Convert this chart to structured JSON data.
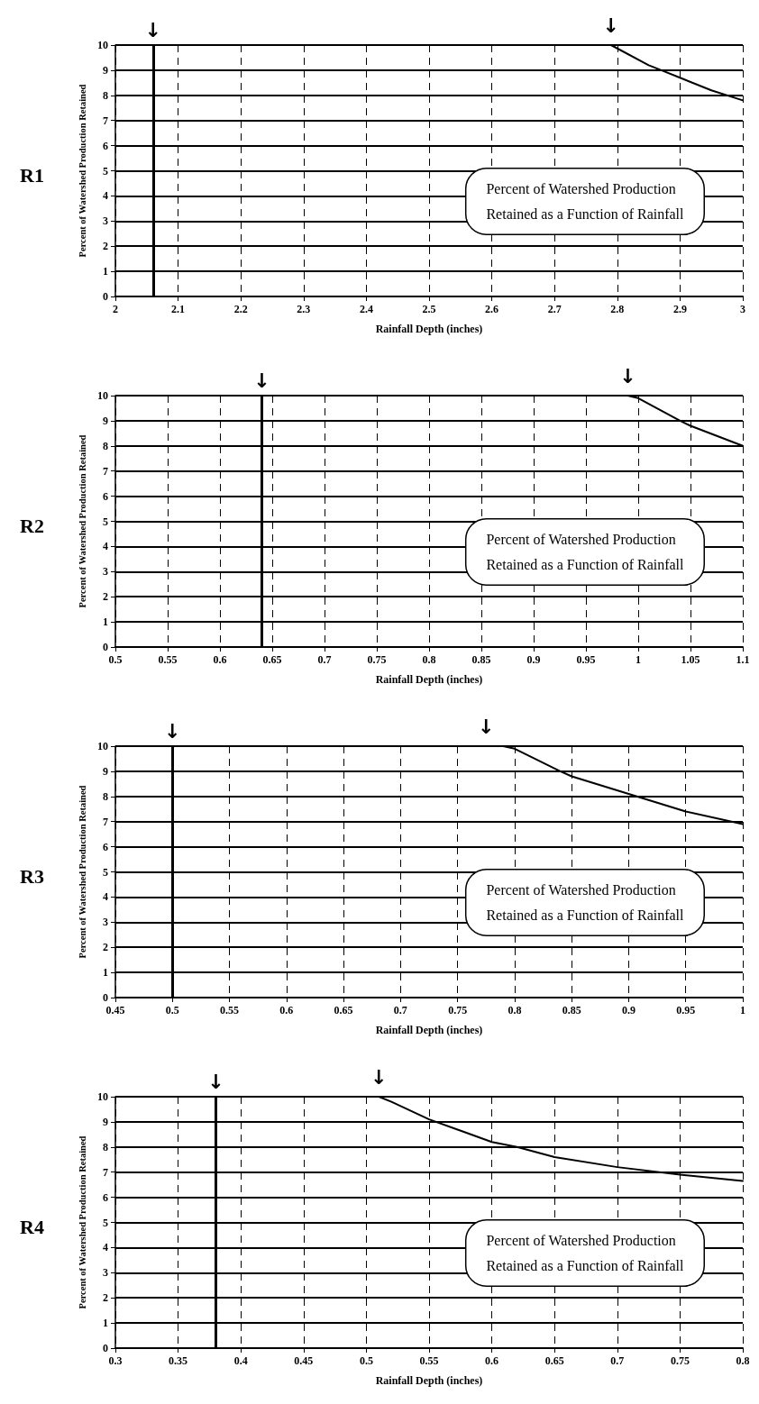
{
  "chart_data": [
    {
      "type": "line",
      "title": "R1",
      "xlabel": "Rainfall Depth (inches)",
      "ylabel": "Percent of Watershed Production Retained",
      "xlim": [
        2,
        3
      ],
      "xticks": [
        2,
        2.1,
        2.2,
        2.3,
        2.4,
        2.5,
        2.6,
        2.7,
        2.8,
        2.9,
        3
      ],
      "ylim": [
        0,
        10
      ],
      "yticks": [
        0,
        1,
        2,
        3,
        4,
        5,
        6,
        7,
        8,
        9,
        10
      ],
      "grid": true,
      "marker": "none",
      "line_style": "solid",
      "series": [
        {
          "color": "#000000",
          "x": [
            2.79,
            2.85,
            2.87,
            2.9,
            2.95,
            3
          ],
          "values": [
            10,
            9.2,
            9,
            8.7,
            8.2,
            7.8
          ]
        }
      ],
      "ref_lines": [
        {
          "axis": "x",
          "value": 2.06,
          "label": "↓",
          "color": "#000000",
          "line_style": "solid"
        }
      ],
      "annotations": [
        {
          "text": "↓",
          "x": 2.79,
          "y": 10
        },
        "Percent of Watershed Production\nRetained as a Function of Rainfall"
      ]
    },
    {
      "type": "line",
      "title": "R2",
      "xlabel": "Rainfall Depth (inches)",
      "ylabel": "Percent of Watershed Production Retained",
      "xlim": [
        0.5,
        1.1
      ],
      "xticks": [
        0.5,
        0.55,
        0.6,
        0.65,
        0.7,
        0.75,
        0.8,
        0.85,
        0.9,
        0.95,
        1,
        1.05,
        1.1
      ],
      "ylim": [
        0,
        10
      ],
      "yticks": [
        0,
        1,
        2,
        3,
        4,
        5,
        6,
        7,
        8,
        9,
        10
      ],
      "grid": true,
      "marker": "none",
      "line_style": "solid",
      "series": [
        {
          "color": "#000000",
          "x": [
            0.99,
            1.0,
            1.04,
            1.05,
            1.1
          ],
          "values": [
            10,
            9.9,
            9,
            8.8,
            8
          ]
        }
      ],
      "ref_lines": [
        {
          "axis": "x",
          "value": 0.64,
          "label": "↓",
          "color": "#000000",
          "line_style": "solid"
        }
      ],
      "annotations": [
        {
          "text": "↓",
          "x": 0.99,
          "y": 10
        },
        "Percent of Watershed Production\nRetained as a Function of Rainfall"
      ]
    },
    {
      "type": "line",
      "title": "R3",
      "xlabel": "Rainfall Depth (inches)",
      "ylabel": "Percent of Watershed Production Retained",
      "xlim": [
        0.45,
        1
      ],
      "xticks": [
        0.45,
        0.5,
        0.55,
        0.6,
        0.65,
        0.7,
        0.75,
        0.8,
        0.85,
        0.9,
        0.95,
        1
      ],
      "ylim": [
        0,
        10
      ],
      "yticks": [
        0,
        1,
        2,
        3,
        4,
        5,
        6,
        7,
        8,
        9,
        10
      ],
      "grid": true,
      "marker": "none",
      "line_style": "solid",
      "series": [
        {
          "color": "#000000",
          "x": [
            0.775,
            0.79,
            0.8,
            0.84,
            0.85,
            0.9,
            0.95,
            1.0
          ],
          "values": [
            10,
            10,
            9.9,
            9,
            8.8,
            8.1,
            7.4,
            6.9
          ]
        }
      ],
      "ref_lines": [
        {
          "axis": "x",
          "value": 0.5,
          "label": "↓",
          "color": "#000000",
          "line_style": "solid"
        }
      ],
      "annotations": [
        {
          "text": "↓",
          "x": 0.775,
          "y": 10
        },
        "Percent of Watershed Production\nRetained as a Function of Rainfall"
      ]
    },
    {
      "type": "line",
      "title": "R4",
      "xlabel": "Rainfall Depth (inches)",
      "ylabel": "Percent of Watershed Production Retained",
      "xlim": [
        0.3,
        0.8
      ],
      "xticks": [
        0.3,
        0.35,
        0.4,
        0.45,
        0.5,
        0.55,
        0.6,
        0.65,
        0.7,
        0.75,
        0.8
      ],
      "ylim": [
        0,
        10
      ],
      "yticks": [
        0,
        1,
        2,
        3,
        4,
        5,
        6,
        7,
        8,
        9,
        10
      ],
      "grid": true,
      "marker": "none",
      "line_style": "solid",
      "series": [
        {
          "color": "#000000",
          "x": [
            0.51,
            0.52,
            0.55,
            0.6,
            0.62,
            0.65,
            0.7,
            0.75,
            0.8
          ],
          "values": [
            10,
            9.8,
            9.1,
            8.2,
            8,
            7.6,
            7.2,
            6.9,
            6.65
          ]
        }
      ],
      "ref_lines": [
        {
          "axis": "x",
          "value": 0.38,
          "label": "↓",
          "color": "#000000",
          "line_style": "solid"
        }
      ],
      "annotations": [
        {
          "text": "↓",
          "x": 0.51,
          "y": 10
        },
        "Percent of Watershed Production\nRetained as a Function of Rainfall"
      ]
    }
  ]
}
